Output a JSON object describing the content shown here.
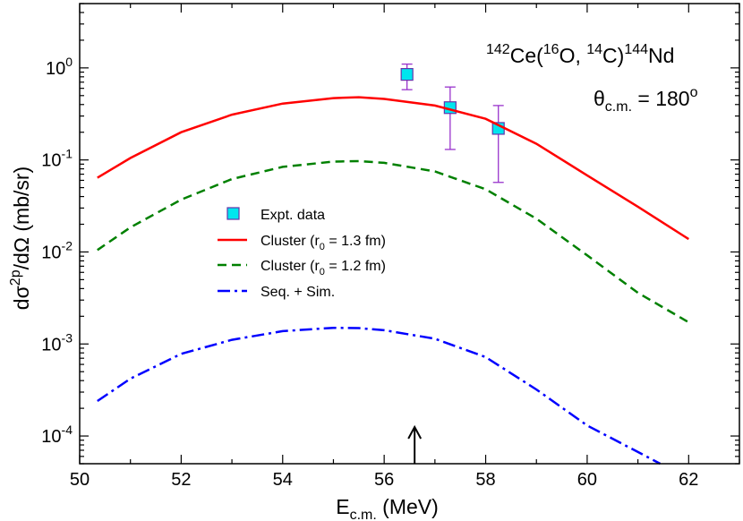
{
  "chart_data": {
    "type": "line",
    "title": "142Ce(16O, 14C)144Nd",
    "reaction": {
      "target_mass": "142",
      "target": "Ce",
      "proj_mass": "16",
      "proj": "O",
      "eject_mass": "14",
      "eject": "C",
      "res_mass": "144",
      "res": "Nd"
    },
    "angle": {
      "symbol": "θ",
      "sub": "c.m.",
      "value": " = 180",
      "sup": "o"
    },
    "xlabel": {
      "main": "E",
      "sub": "c.m.",
      "rest": " (MeV)"
    },
    "ylabel": {
      "a": "dσ",
      "sup": "2p",
      "b": "/dΩ (mb/sr)"
    },
    "xlim": [
      50,
      63
    ],
    "ylim": [
      5e-05,
      5
    ],
    "yscale": "log",
    "xticks": [
      50,
      52,
      54,
      56,
      58,
      60,
      62
    ],
    "xtick_labels": [
      "50",
      "52",
      "54",
      "56",
      "58",
      "60",
      "62"
    ],
    "yticks": [
      {
        "value": 1,
        "base": "10",
        "exp": "0"
      },
      {
        "value": 0.1,
        "base": "10",
        "exp": "-1"
      },
      {
        "value": 0.01,
        "base": "10",
        "exp": "-2"
      },
      {
        "value": 0.001,
        "base": "10",
        "exp": "-3"
      },
      {
        "value": 0.0001,
        "base": "10",
        "exp": "-4"
      }
    ],
    "arrow_at_x": 56.6,
    "series": [
      {
        "name": "Expt. data",
        "kind": "points",
        "color": "#00e5ee",
        "x": [
          56.45,
          57.3,
          58.25
        ],
        "y": [
          0.85,
          0.37,
          0.22
        ],
        "err_low": [
          0.58,
          0.13,
          0.057
        ],
        "err_high": [
          1.1,
          0.62,
          0.39
        ]
      },
      {
        "name": "Cluster",
        "legend_sub": "0",
        "legend_rest": " = 1.3 fm)",
        "legend_pre": "Cluster (r",
        "kind": "line",
        "style": "solid",
        "color": "#ff0000",
        "x": [
          50.35,
          51,
          52,
          53,
          54,
          55,
          55.5,
          56,
          57,
          58,
          59,
          60,
          61,
          62
        ],
        "y": [
          0.064,
          0.105,
          0.2,
          0.31,
          0.41,
          0.47,
          0.48,
          0.46,
          0.39,
          0.28,
          0.15,
          0.068,
          0.031,
          0.0138
        ]
      },
      {
        "name": "Cluster",
        "legend_sub": "0",
        "legend_rest": " = 1.2 fm)",
        "legend_pre": "Cluster (r",
        "kind": "line",
        "style": "dashed",
        "color": "#008000",
        "x": [
          50.35,
          51,
          52,
          53,
          54,
          55,
          55.5,
          56,
          57,
          58,
          59,
          60,
          61,
          62
        ],
        "y": [
          0.0105,
          0.0185,
          0.037,
          0.062,
          0.084,
          0.096,
          0.097,
          0.093,
          0.075,
          0.048,
          0.023,
          0.0092,
          0.0036,
          0.00172
        ]
      },
      {
        "name": "Seq. + Sim.",
        "legend_pre": "Seq. + Sim.",
        "legend_sub": "",
        "legend_rest": "",
        "kind": "line",
        "style": "dashdot",
        "color": "#0000ff",
        "x": [
          50.35,
          51,
          52,
          53,
          54,
          55,
          55.5,
          56,
          57,
          58,
          59,
          60,
          61,
          61.5
        ],
        "y": [
          0.00024,
          0.00042,
          0.00078,
          0.00111,
          0.00138,
          0.0015,
          0.00149,
          0.00141,
          0.00114,
          0.00072,
          0.00032,
          0.00013,
          6.7e-05,
          4.8e-05
        ]
      }
    ]
  }
}
